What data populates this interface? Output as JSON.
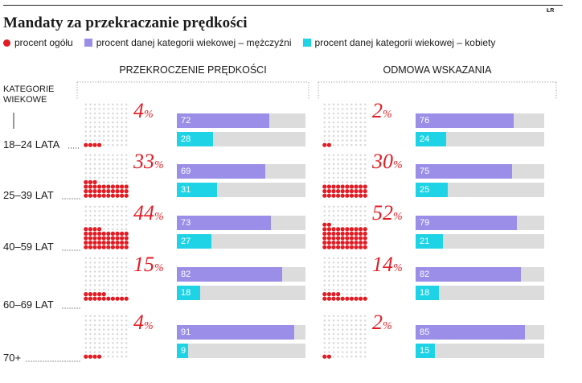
{
  "title": "Mandaty za przekraczanie prędkości",
  "logo": "ŁR",
  "legend": [
    {
      "label": "procent ogółu",
      "color": "#e31b23",
      "shape": "dot"
    },
    {
      "label": "procent danej kategorii wiekowej – mężczyźni",
      "color": "#9b8ee8",
      "shape": "square"
    },
    {
      "label": "procent danej kategorii wiekowej – kobiety",
      "color": "#1fd3e6",
      "shape": "square"
    }
  ],
  "category_header": "KATEGORIE WIEKOWE",
  "colors": {
    "total": "#e31b23",
    "men": "#9b8ee8",
    "women": "#1fd3e6",
    "track": "#dcdcdc",
    "waffle_empty": "#d6d6d6"
  },
  "chart_data": [
    {
      "type": "bar",
      "title": "PRZEKROCZENIE PRĘDKOŚCI",
      "categories": [
        "18–24 LATA",
        "25–39 LAT",
        "40–59 LAT",
        "60–69 LAT",
        "70+"
      ],
      "total_percent": [
        4,
        33,
        44,
        15,
        4
      ],
      "series": [
        {
          "name": "procent danej kategorii wiekowej – mężczyźni",
          "values": [
            72,
            69,
            73,
            82,
            91
          ]
        },
        {
          "name": "procent danej kategorii wiekowej – kobiety",
          "values": [
            28,
            31,
            27,
            18,
            9
          ]
        }
      ],
      "ylim": [
        0,
        100
      ]
    },
    {
      "type": "bar",
      "title": "ODMOWA WSKAZANIA",
      "categories": [
        "18–24 LATA",
        "25–39 LAT",
        "40–59 LAT",
        "60–69 LAT",
        "70+"
      ],
      "total_percent": [
        2,
        30,
        52,
        14,
        2
      ],
      "series": [
        {
          "name": "procent danej kategorii wiekowej – mężczyźni",
          "values": [
            76,
            75,
            79,
            82,
            85
          ]
        },
        {
          "name": "procent danej kategorii wiekowej – kobiety",
          "values": [
            24,
            25,
            21,
            18,
            15
          ]
        }
      ],
      "ylim": [
        0,
        100
      ]
    }
  ]
}
